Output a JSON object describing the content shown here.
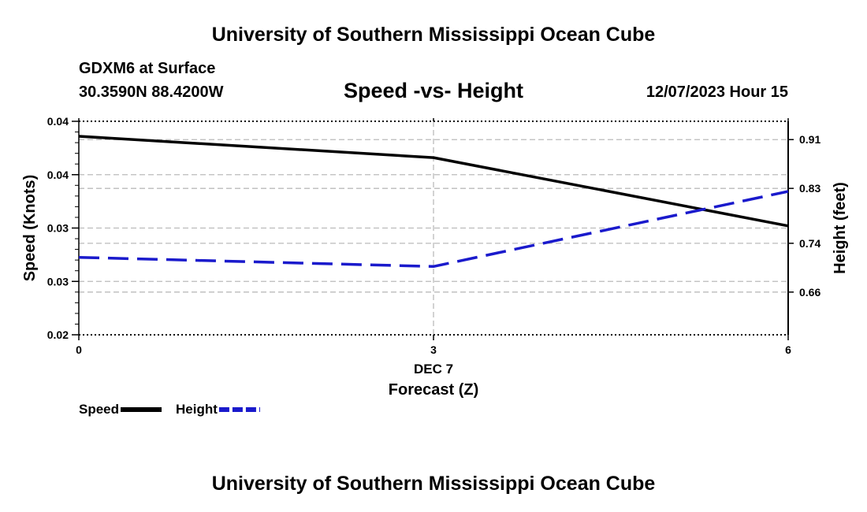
{
  "header": {
    "title": "University of Southern Mississippi Ocean Cube",
    "station": "GDXM6 at Surface",
    "coords": "30.3590N  88.4200W",
    "datetime": "12/07/2023 Hour 15"
  },
  "footer": {
    "title": "University of Southern Mississippi Ocean Cube"
  },
  "chart_data": {
    "type": "line",
    "title": "Speed -vs- Height",
    "x": [
      0,
      3,
      6
    ],
    "xtick_labels": [
      "0",
      "3",
      "6"
    ],
    "xlabel_date": "DEC 7",
    "xlabel": "Forecast (Z)",
    "xlim": [
      0,
      6
    ],
    "left_axis": {
      "label": "Speed (Knots)",
      "ylim": [
        0.02,
        0.04
      ],
      "ticks": [
        0.02,
        0.025,
        0.03,
        0.035,
        0.04
      ],
      "tick_labels": [
        "0.02",
        "0.03",
        "0.03",
        "0.04",
        "0.04"
      ]
    },
    "right_axis": {
      "label": "Height (feet)",
      "ylim": [
        0.59,
        0.94
      ],
      "ticks": [
        0.66,
        0.74,
        0.83,
        0.91
      ],
      "tick_labels": [
        "0.66",
        "0.74",
        "0.83",
        "0.91"
      ]
    },
    "series": [
      {
        "name": "Speed",
        "axis": "left",
        "style": "solid",
        "color": "#000000",
        "values": [
          0.0386,
          0.0366,
          0.0302
        ]
      },
      {
        "name": "Height",
        "axis": "right",
        "style": "dashed",
        "color": "#1a1acc",
        "values": [
          0.717,
          0.702,
          0.825
        ]
      }
    ],
    "grid": true,
    "legend_position": "bottom-left"
  }
}
